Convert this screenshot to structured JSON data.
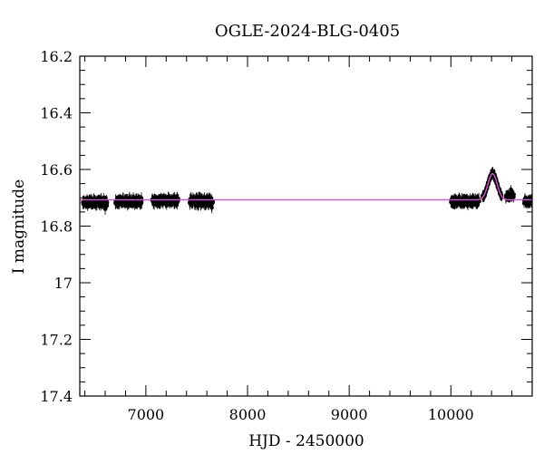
{
  "chart_data": {
    "type": "scatter",
    "title": "OGLE-2024-BLG-0405",
    "xlabel": "HJD - 2450000",
    "ylabel": "I magnitude",
    "xlim": [
      6350,
      10800
    ],
    "ylim": [
      17.4,
      16.2
    ],
    "y_inverted": true,
    "grid": false,
    "xticks": [
      7000,
      8000,
      9000,
      10000
    ],
    "xtick_labels": [
      "7000",
      "8000",
      "9000",
      "10000"
    ],
    "yticks": [
      16.2,
      16.4,
      16.6,
      16.8,
      17.0,
      17.2,
      17.4
    ],
    "ytick_labels": [
      "16.2",
      "16.4",
      "16.6",
      "16.8",
      "17",
      "17.2",
      "17.4"
    ],
    "series": [
      {
        "kind": "points_with_errorbars",
        "color": "#000000",
        "segments": [
          {
            "x_start": 6380,
            "x_end": 6620,
            "mag": 16.715,
            "scatter": 0.012,
            "err": 0.018
          },
          {
            "x_start": 6700,
            "x_end": 6960,
            "mag": 16.713,
            "scatter": 0.012,
            "err": 0.018
          },
          {
            "x_start": 7060,
            "x_end": 7320,
            "mag": 16.71,
            "scatter": 0.012,
            "err": 0.018
          },
          {
            "x_start": 7430,
            "x_end": 7660,
            "mag": 16.712,
            "scatter": 0.013,
            "err": 0.02
          },
          {
            "x_start": 10000,
            "x_end": 10280,
            "mag": 16.712,
            "scatter": 0.012,
            "err": 0.018
          },
          {
            "x_start": 10310,
            "x_end": 10500,
            "mag": 16.71,
            "scatter": 0.01,
            "err": 0.016,
            "event": true
          },
          {
            "x_start": 10540,
            "x_end": 10620,
            "mag": 16.695,
            "scatter": 0.01,
            "err": 0.015
          },
          {
            "x_start": 10720,
            "x_end": 10800,
            "mag": 16.712,
            "scatter": 0.01,
            "err": 0.016
          }
        ]
      },
      {
        "kind": "model",
        "color": "#d94fd9",
        "baseline": 16.707,
        "peak_x": 10410,
        "peak_mag": 16.615,
        "width": 45
      }
    ]
  }
}
